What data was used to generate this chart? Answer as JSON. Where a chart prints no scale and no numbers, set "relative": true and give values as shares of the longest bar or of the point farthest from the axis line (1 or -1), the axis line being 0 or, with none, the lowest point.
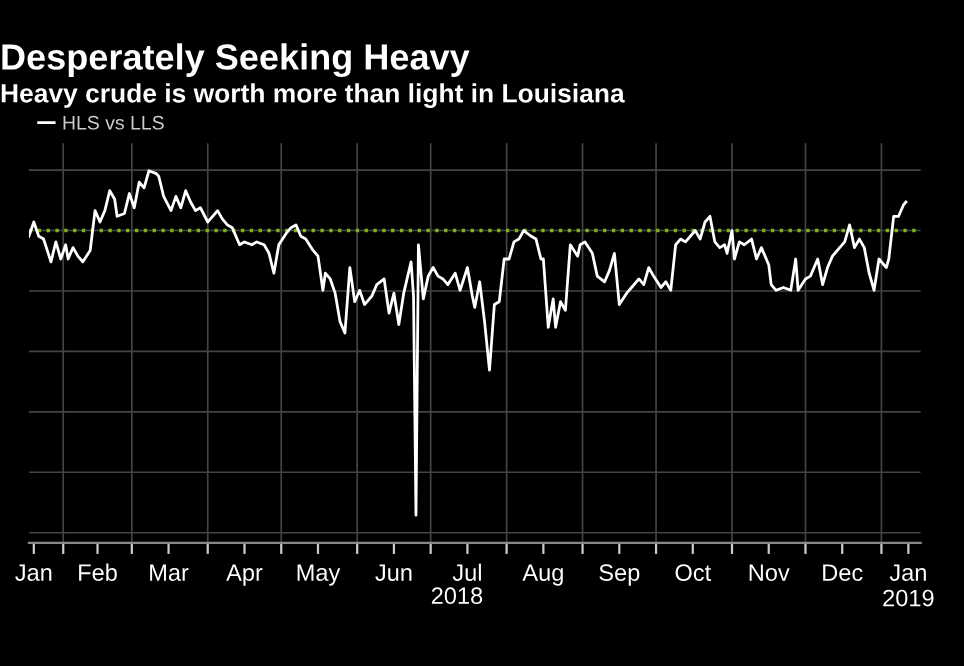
{
  "chart_data": {
    "type": "line",
    "title": "Desperately Seeking Heavy",
    "subtitle": "Heavy crude is worth more than light in Louisiana",
    "xlabel": "2018",
    "relative": true,
    "legend": "top left",
    "grid": true,
    "xlim": [
      "2018-01-18",
      "2019-01-17"
    ],
    "xticks": [
      {
        "value": "2018-01-20",
        "label": "Jan"
      },
      {
        "value": "2018-02-01",
        "label": null
      },
      {
        "value": "2018-02-15",
        "label": "Feb"
      },
      {
        "value": "2018-03-01",
        "label": null
      },
      {
        "value": "2018-03-16",
        "label": "Mar"
      },
      {
        "value": "2018-04-01",
        "label": null
      },
      {
        "value": "2018-04-16",
        "label": "Apr"
      },
      {
        "value": "2018-05-01",
        "label": null
      },
      {
        "value": "2018-05-16",
        "label": "May"
      },
      {
        "value": "2018-06-01",
        "label": null
      },
      {
        "value": "2018-06-16",
        "label": "Jun"
      },
      {
        "value": "2018-07-01",
        "label": null
      },
      {
        "value": "2018-07-16",
        "label": "Jul"
      },
      {
        "value": "2018-08-01",
        "label": null
      },
      {
        "value": "2018-08-16",
        "label": "Aug"
      },
      {
        "value": "2018-09-01",
        "label": null
      },
      {
        "value": "2018-09-16",
        "label": "Sep"
      },
      {
        "value": "2018-10-01",
        "label": null
      },
      {
        "value": "2018-10-16",
        "label": "Oct"
      },
      {
        "value": "2018-11-01",
        "label": null
      },
      {
        "value": "2018-11-16",
        "label": "Nov"
      },
      {
        "value": "2018-12-01",
        "label": null
      },
      {
        "value": "2018-12-16",
        "label": "Dec"
      },
      {
        "value": "2019-01-01",
        "label": null
      },
      {
        "value": "2019-01-12",
        "label": "Jan\n2019"
      }
    ],
    "ref_lines": [
      {
        "axis": "y",
        "value": 0,
        "label": null,
        "color": "#7cb518",
        "line_style": "dotted"
      }
    ],
    "series": [
      {
        "name": "HLS vs LLS",
        "color": "#ffffff",
        "x": [
          "2018-01-18",
          "2018-01-20",
          "2018-01-22",
          "2018-01-24",
          "2018-01-27",
          "2018-01-29",
          "2018-01-31",
          "2018-02-02",
          "2018-02-03",
          "2018-02-05",
          "2018-02-07",
          "2018-02-09",
          "2018-02-12",
          "2018-02-14",
          "2018-02-16",
          "2018-02-18",
          "2018-02-20",
          "2018-02-22",
          "2018-02-23",
          "2018-02-26",
          "2018-02-28",
          "2018-03-02",
          "2018-03-04",
          "2018-03-06",
          "2018-03-08",
          "2018-03-11",
          "2018-03-12",
          "2018-03-14",
          "2018-03-17",
          "2018-03-19",
          "2018-03-21",
          "2018-03-23",
          "2018-03-25",
          "2018-03-27",
          "2018-03-29",
          "2018-04-01",
          "2018-04-03",
          "2018-04-05",
          "2018-04-07",
          "2018-04-09",
          "2018-04-11",
          "2018-04-14",
          "2018-04-16",
          "2018-04-19",
          "2018-04-21",
          "2018-04-24",
          "2018-04-26",
          "2018-04-28",
          "2018-04-30",
          "2018-05-03",
          "2018-05-05",
          "2018-05-07",
          "2018-05-09",
          "2018-05-11",
          "2018-05-14",
          "2018-05-16",
          "2018-05-18",
          "2018-05-19",
          "2018-05-21",
          "2018-05-23",
          "2018-05-25",
          "2018-05-27",
          "2018-05-29",
          "2018-05-31",
          "2018-06-02",
          "2018-06-04",
          "2018-06-07",
          "2018-06-09",
          "2018-06-12",
          "2018-06-14",
          "2018-06-16",
          "2018-06-18",
          "2018-06-20",
          "2018-06-23",
          "2018-06-24",
          "2018-06-25",
          "2018-06-26",
          "2018-06-28",
          "2018-06-30",
          "2018-07-02",
          "2018-07-04",
          "2018-07-06",
          "2018-07-08",
          "2018-07-11",
          "2018-07-13",
          "2018-07-16",
          "2018-07-18",
          "2018-07-19",
          "2018-07-21",
          "2018-07-23",
          "2018-07-25",
          "2018-07-27",
          "2018-07-29",
          "2018-07-31",
          "2018-08-02",
          "2018-08-04",
          "2018-08-06",
          "2018-08-08",
          "2018-08-11",
          "2018-08-13",
          "2018-08-15",
          "2018-08-16",
          "2018-08-18",
          "2018-08-20",
          "2018-08-21",
          "2018-08-23",
          "2018-08-25",
          "2018-08-27",
          "2018-08-30",
          "2018-08-31",
          "2018-09-02",
          "2018-09-05",
          "2018-09-07",
          "2018-09-10",
          "2018-09-12",
          "2018-09-14",
          "2018-09-16",
          "2018-09-19",
          "2018-09-21",
          "2018-09-24",
          "2018-09-26",
          "2018-09-28",
          "2018-09-30",
          "2018-10-03",
          "2018-10-05",
          "2018-10-07",
          "2018-10-09",
          "2018-10-11",
          "2018-10-13",
          "2018-10-15",
          "2018-10-17",
          "2018-10-19",
          "2018-10-21",
          "2018-10-23",
          "2018-10-25",
          "2018-10-27",
          "2018-10-29",
          "2018-10-30",
          "2018-11-01",
          "2018-11-02",
          "2018-11-04",
          "2018-11-06",
          "2018-11-09",
          "2018-11-11",
          "2018-11-13",
          "2018-11-16",
          "2018-11-17",
          "2018-11-19",
          "2018-11-22",
          "2018-11-25",
          "2018-11-27",
          "2018-11-28",
          "2018-12-01",
          "2018-12-03",
          "2018-12-06",
          "2018-12-08",
          "2018-12-10",
          "2018-12-12",
          "2018-12-14",
          "2018-12-17",
          "2018-12-19",
          "2018-12-21",
          "2018-12-23",
          "2018-12-25",
          "2018-12-27",
          "2018-12-29",
          "2018-12-31",
          "2019-01-03",
          "2019-01-04",
          "2019-01-06",
          "2019-01-08",
          "2019-01-10",
          "2019-01-11"
        ],
        "values": [
          -0.02,
          0.03,
          -0.02,
          -0.03,
          -0.11,
          -0.04,
          -0.1,
          -0.05,
          -0.1,
          -0.06,
          -0.09,
          -0.11,
          -0.07,
          0.07,
          0.03,
          0.07,
          0.14,
          0.11,
          0.05,
          0.06,
          0.13,
          0.08,
          0.17,
          0.15,
          0.21,
          0.2,
          0.19,
          0.12,
          0.07,
          0.12,
          0.08,
          0.14,
          0.1,
          0.07,
          0.08,
          0.03,
          0.05,
          0.07,
          0.04,
          0.02,
          0.01,
          -0.05,
          -0.04,
          -0.05,
          -0.04,
          -0.05,
          -0.08,
          -0.15,
          -0.05,
          -0.01,
          0.01,
          0.02,
          -0.02,
          -0.03,
          -0.07,
          -0.09,
          -0.21,
          -0.15,
          -0.17,
          -0.22,
          -0.32,
          -0.36,
          -0.13,
          -0.25,
          -0.21,
          -0.26,
          -0.23,
          -0.19,
          -0.17,
          -0.29,
          -0.22,
          -0.33,
          -0.22,
          -0.11,
          -0.23,
          -1.0,
          -0.05,
          -0.24,
          -0.16,
          -0.13,
          -0.16,
          -0.17,
          -0.19,
          -0.15,
          -0.21,
          -0.13,
          -0.23,
          -0.27,
          -0.18,
          -0.32,
          -0.49,
          -0.26,
          -0.25,
          -0.1,
          -0.1,
          -0.04,
          -0.03,
          0,
          -0.02,
          -0.03,
          -0.1,
          -0.1,
          -0.34,
          -0.24,
          -0.34,
          -0.25,
          -0.28,
          -0.05,
          -0.09,
          -0.05,
          -0.04,
          -0.08,
          -0.16,
          -0.18,
          -0.14,
          -0.08,
          -0.26,
          -0.22,
          -0.2,
          -0.17,
          -0.19,
          -0.13,
          -0.16,
          -0.2,
          -0.18,
          -0.21,
          -0.05,
          -0.03,
          -0.04,
          -0.02,
          0,
          -0.03,
          0.03,
          0.05,
          -0.04,
          -0.06,
          -0.05,
          -0.08,
          0,
          -0.1,
          -0.04,
          -0.05,
          -0.03,
          -0.1,
          -0.06,
          -0.12,
          -0.19,
          -0.21,
          -0.2,
          -0.21,
          -0.1,
          -0.21,
          -0.17,
          -0.16,
          -0.1,
          -0.19,
          -0.13,
          -0.09,
          -0.07,
          -0.04,
          0.02,
          -0.06,
          -0.03,
          -0.06,
          -0.15,
          -0.21,
          -0.1,
          -0.13,
          -0.1,
          0.05,
          0.05,
          0.09,
          0.1
        ]
      }
    ]
  }
}
